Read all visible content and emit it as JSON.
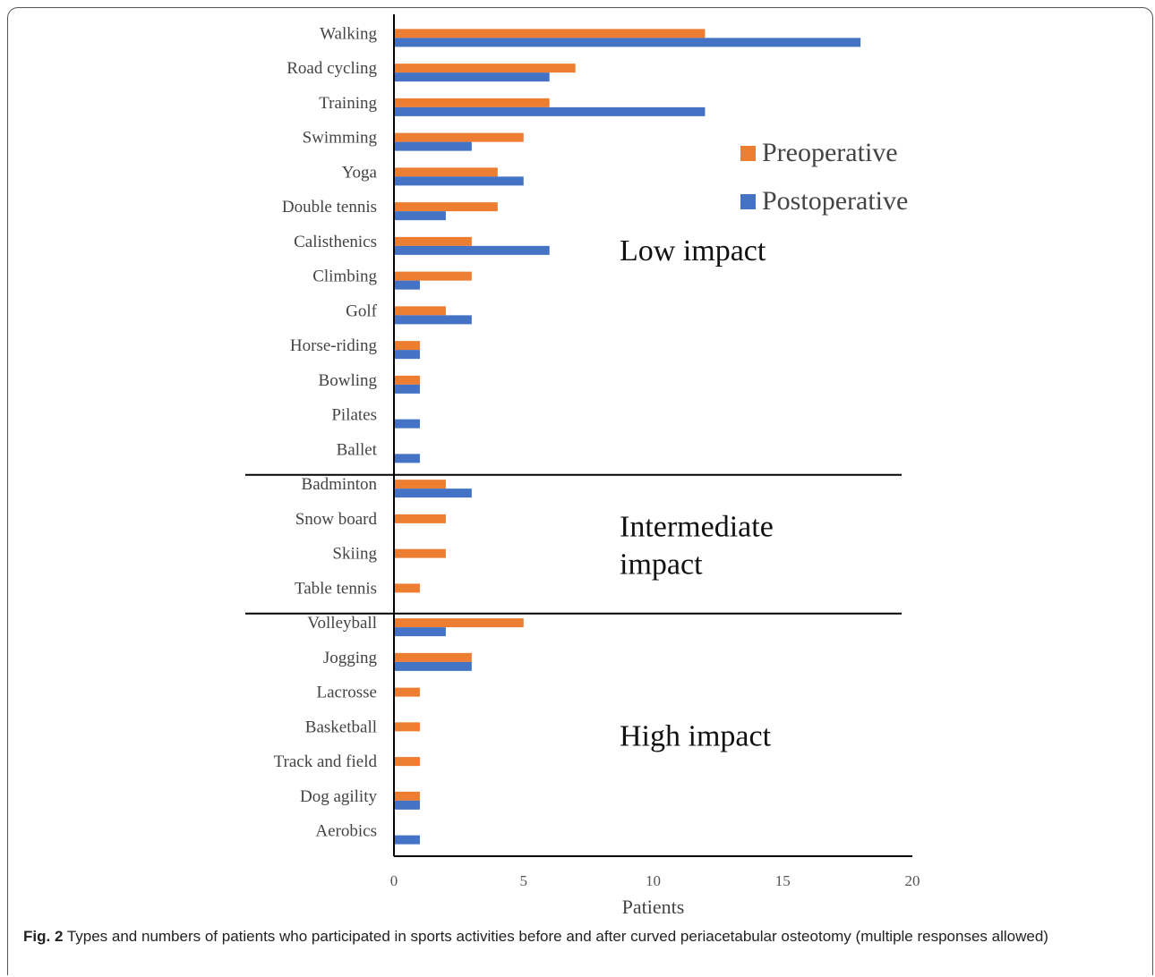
{
  "chart_data": {
    "type": "bar",
    "orientation": "horizontal",
    "categories": [
      "Walking",
      "Road cycling",
      "Training",
      "Swimming",
      "Yoga",
      "Double tennis",
      "Calisthenics",
      "Climbing",
      "Golf",
      "Horse-riding",
      "Bowling",
      "Pilates",
      "Ballet",
      "Badminton",
      "Snow board",
      "Skiing",
      "Table tennis",
      "Volleyball",
      "Jogging",
      "Lacrosse",
      "Basketball",
      "Track and field",
      "Dog agility",
      "Aerobics"
    ],
    "series": [
      {
        "name": "Preoperative",
        "color": "#ed7d31",
        "values": [
          12,
          7,
          6,
          5,
          4,
          4,
          3,
          3,
          2,
          1,
          1,
          0,
          0,
          2,
          2,
          2,
          1,
          5,
          3,
          1,
          1,
          1,
          1,
          0
        ]
      },
      {
        "name": "Postoperative",
        "color": "#4472c4",
        "values": [
          18,
          6,
          12,
          3,
          5,
          2,
          6,
          1,
          3,
          1,
          1,
          1,
          1,
          3,
          0,
          0,
          0,
          2,
          3,
          0,
          0,
          0,
          1,
          1
        ]
      }
    ],
    "xlabel": "Patients",
    "xlim": [
      0,
      20
    ],
    "xticks": [
      0,
      5,
      10,
      15,
      20
    ],
    "legend_position": "top-right",
    "groups": [
      {
        "label_lines": [
          "Low impact"
        ],
        "from": "Walking",
        "to": "Ballet"
      },
      {
        "label_lines": [
          "Intermediate",
          "impact"
        ],
        "from": "Badminton",
        "to": "Table tennis"
      },
      {
        "label_lines": [
          "High impact"
        ],
        "from": "Volleyball",
        "to": "Aerobics"
      }
    ]
  },
  "caption": {
    "label": "Fig. 2",
    "text": " Types and numbers of patients who participated in sports activities before and after curved periacetabular osteotomy (multiple responses allowed)"
  }
}
